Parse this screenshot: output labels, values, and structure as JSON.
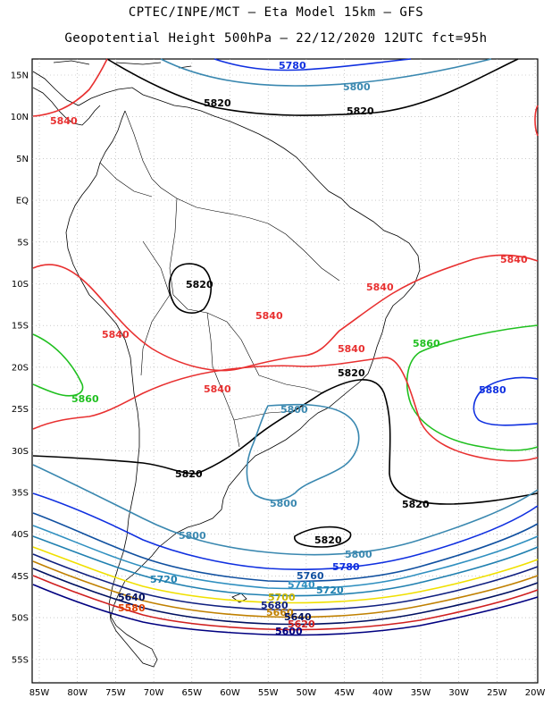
{
  "header": {
    "line1": "CPTEC/INPE/MCT –  Eta Model 15km – GFS",
    "line2": "Geopotential Height 500hPa – 22/12/2020 12UTC fct=95h"
  },
  "axes": {
    "lat_labels": [
      "15N",
      "10N",
      "5N",
      "EQ",
      "5S",
      "10S",
      "15S",
      "20S",
      "25S",
      "30S",
      "35S",
      "40S",
      "45S",
      "50S",
      "55S"
    ],
    "lon_labels": [
      "85W",
      "80W",
      "75W",
      "70W",
      "65W",
      "60W",
      "55W",
      "50W",
      "45W",
      "40W",
      "35W",
      "30W",
      "25W",
      "20W"
    ]
  },
  "colors": {
    "c5560": "#000080",
    "c5580": "#e04000",
    "c5600": "#000000",
    "c5620": "#d02020",
    "c5640": "#001060",
    "c5660": "#c08000",
    "c5680": "#102080",
    "c5700": "#f0e000",
    "c5720": "#2080b0",
    "c5740": "#3090c0",
    "c5760": "#1050a0",
    "c5780": "#1030e0",
    "c5800": "#3a88b0",
    "c5820": "#000000",
    "c5840": "#e83030",
    "c5860": "#20c020",
    "c5880": "#1030e0",
    "coast": "#000000",
    "grid": "#aaaaaa"
  },
  "contour_labels": {
    "n5780a": "5780",
    "n5800a": "5800",
    "n5820a": "5820",
    "n5820b": "5820",
    "n5840a": "5840",
    "n5840b": "5840",
    "n5820c": "5820",
    "n5840c": "5840",
    "n5840d": "5840",
    "n5840e": "5840",
    "n5840f": "5840",
    "n5840g": "5840",
    "n5860a": "5860",
    "n5860b": "5860",
    "n5880a": "5880",
    "n5820d": "5820",
    "n5800b": "5800",
    "n5820e": "5820",
    "n5820f": "5820",
    "n5800c": "5800",
    "n5820g": "5820",
    "n5800d": "5800",
    "n5800e": "5800",
    "n5780b": "5780",
    "n5760a": "5760",
    "n5740a": "5740",
    "n5720a": "5720",
    "n5720b": "5720",
    "n5700a": "5700",
    "n5680a": "5680",
    "n5660a": "5660",
    "n5640a": "5640",
    "n5640b": "5640",
    "n5620a": "5620",
    "n5600a": "5600",
    "n5580a": "5580"
  }
}
